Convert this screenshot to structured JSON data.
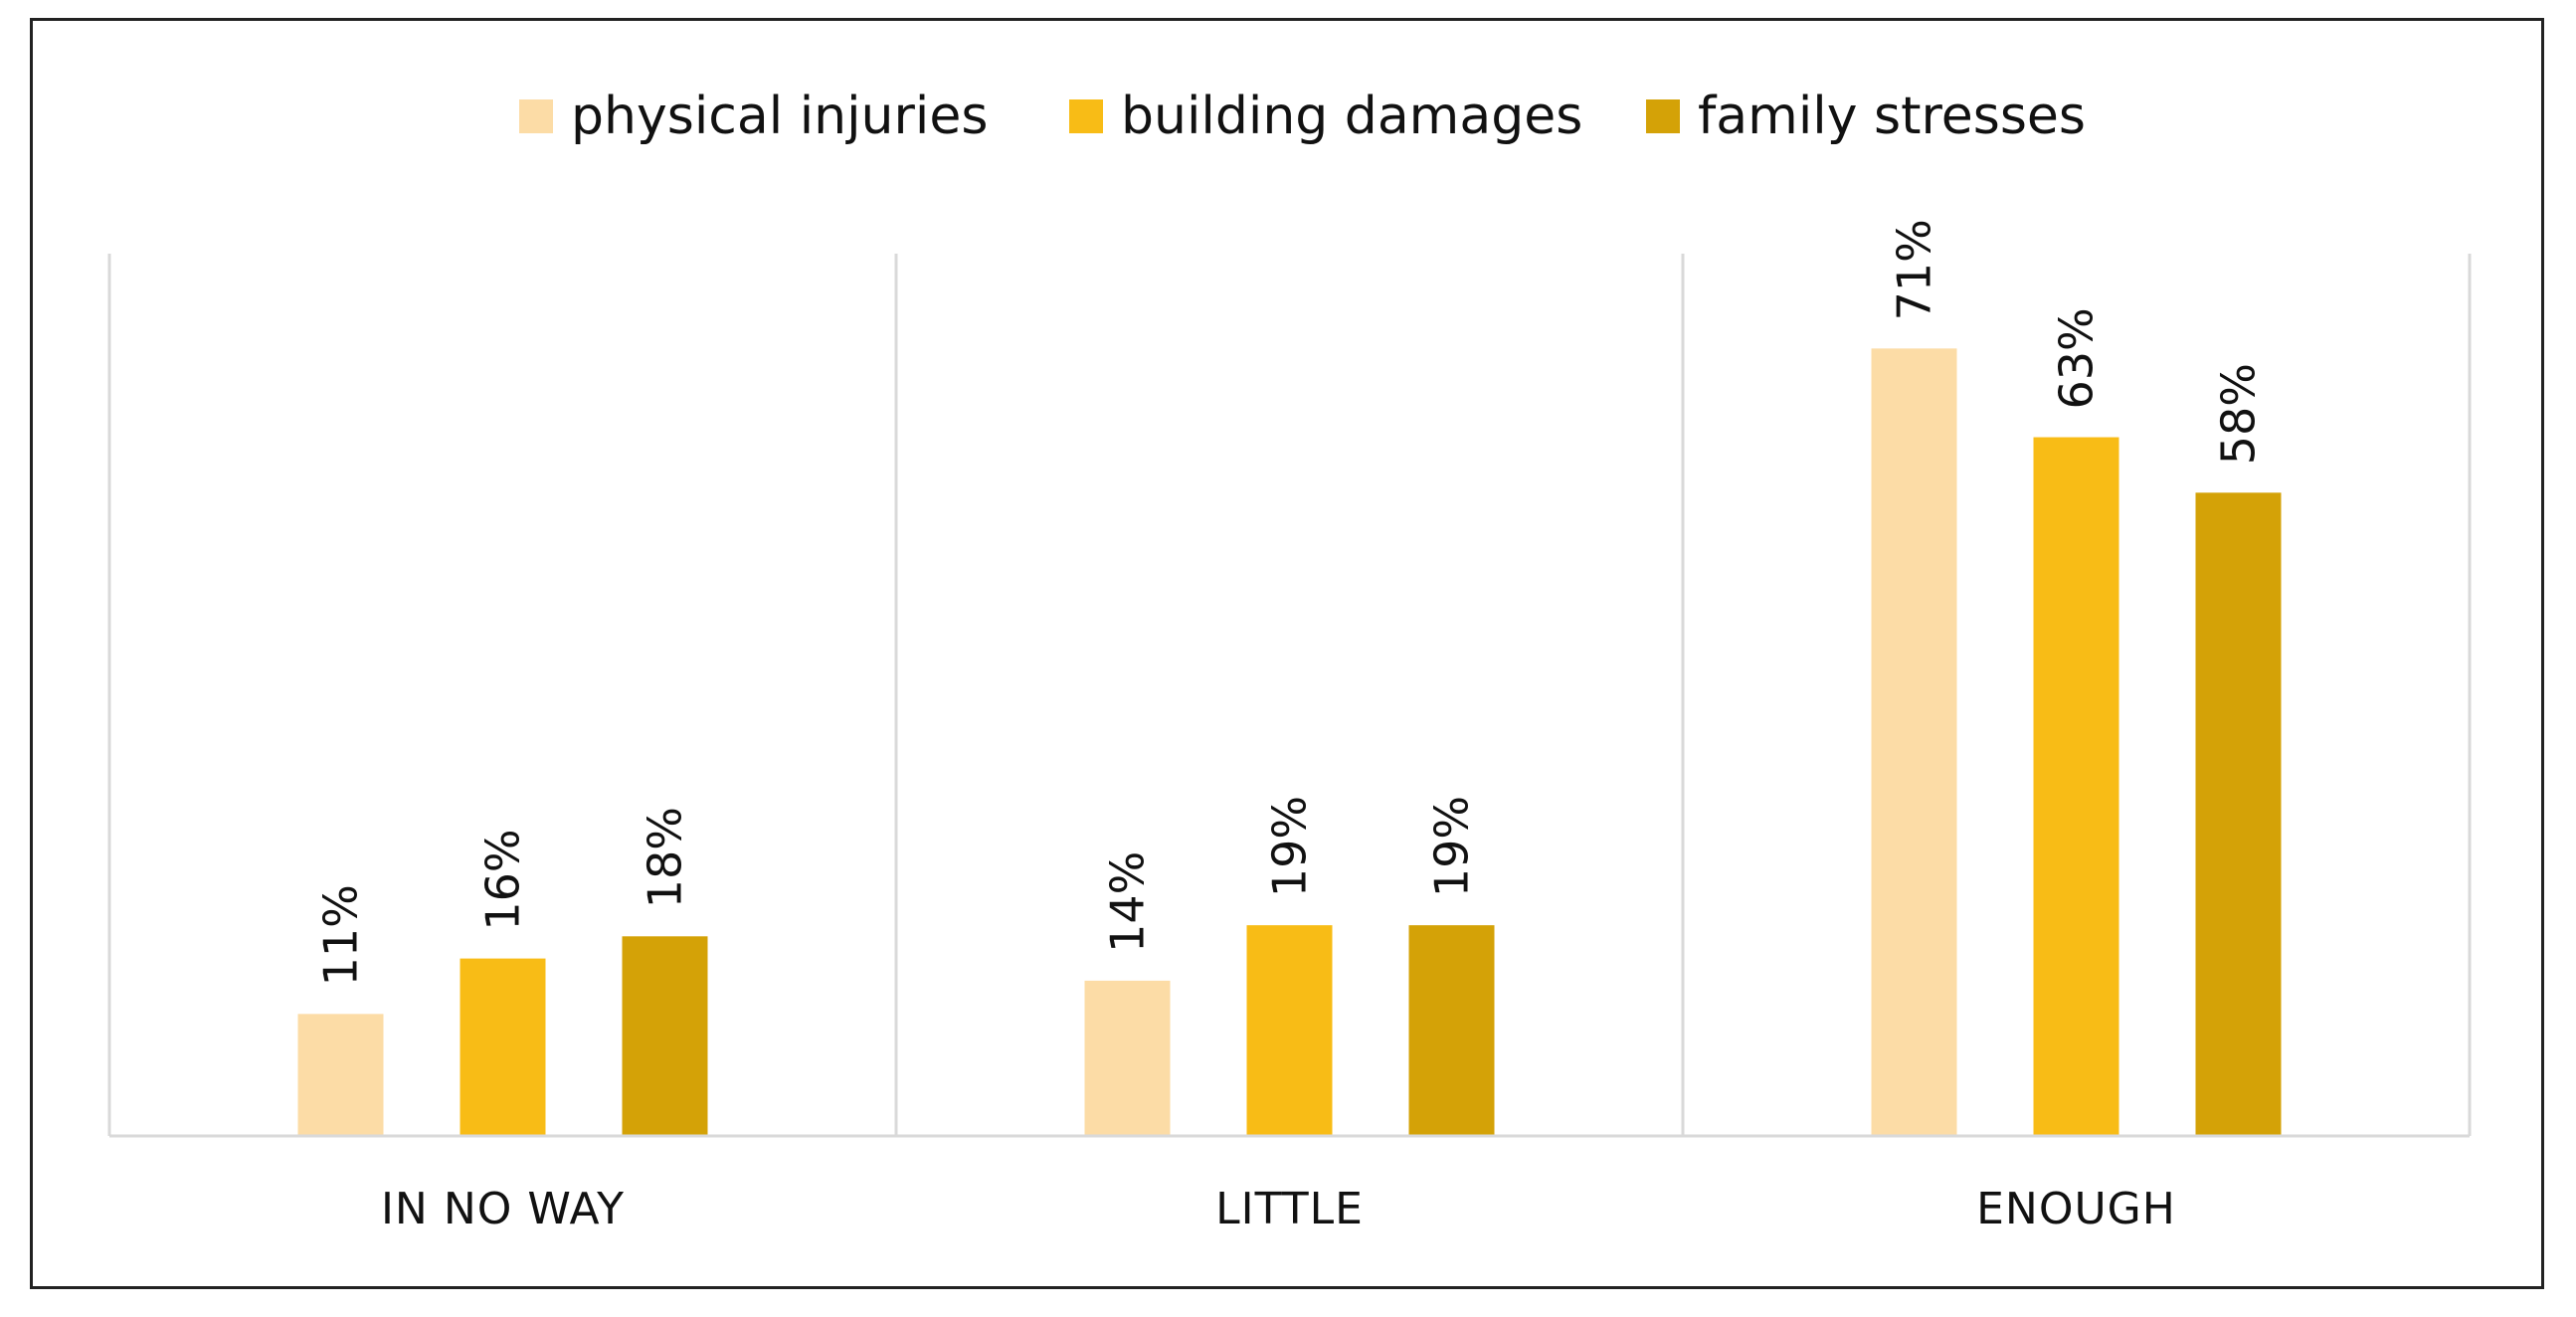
{
  "chart_data": {
    "type": "bar",
    "title": "",
    "xlabel": "",
    "ylabel": "",
    "ylim": [
      0,
      80
    ],
    "grid": false,
    "legend_position": "top-center",
    "categories": [
      "IN NO WAY",
      "LITTLE",
      "ENOUGH"
    ],
    "series": [
      {
        "name": "physical injuries",
        "color": "#FCDCA6",
        "values": [
          11,
          14,
          71
        ],
        "labels": [
          "11%",
          "14%",
          "71%"
        ]
      },
      {
        "name": "building damages",
        "color": "#F8BC16",
        "values": [
          16,
          19,
          63
        ],
        "labels": [
          "16%",
          "19%",
          "63%"
        ]
      },
      {
        "name": "family stresses",
        "color": "#D4A207",
        "values": [
          18,
          19,
          58
        ],
        "labels": [
          "18%",
          "19%",
          "58%"
        ]
      }
    ]
  }
}
